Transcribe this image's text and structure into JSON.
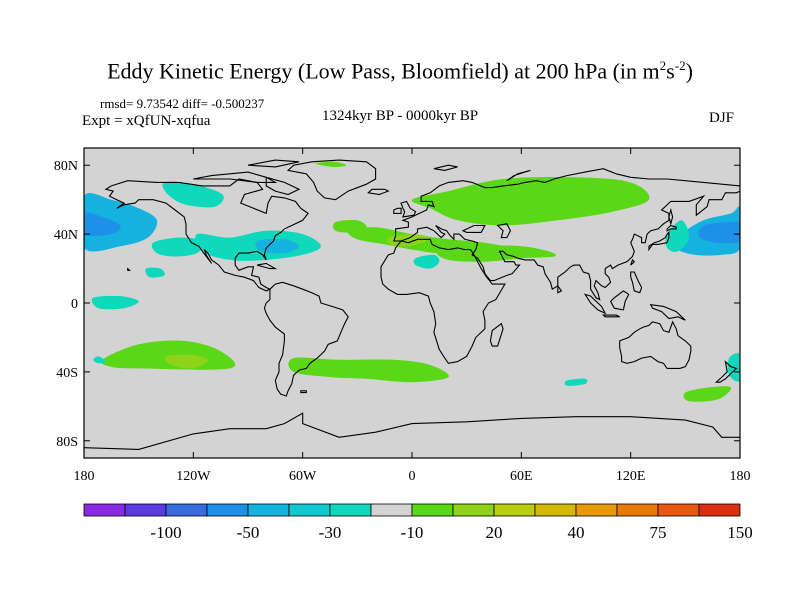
{
  "title": {
    "main": "Eddy Kinetic Energy (Low Pass, Bloomfield) at 200 hPa (in m",
    "sup1": "2",
    "mid": "s",
    "sup2": "-2",
    "end": ")"
  },
  "stats": {
    "rmsd": "rmsd= 9.73542 diff= -0.500237",
    "expt": "Expt = xQfUN-xqfua",
    "period": "1324kyr BP - 0000kyr BP",
    "season": "DJF"
  },
  "colors": {
    "ocean_land_background": "#d3d3d3",
    "coastline": "#000000"
  },
  "chart_data": {
    "type": "filled-contour-map",
    "title": "Eddy Kinetic Energy (Low Pass, Bloomfield) at 200 hPa (in m^2 s^-2)",
    "projection": "cylindrical equidistant",
    "lon_range": [
      -180,
      180
    ],
    "lat_range": [
      -90,
      90
    ],
    "x_ticks": [
      {
        "lon": -180,
        "label": "180"
      },
      {
        "lon": -120,
        "label": "120W"
      },
      {
        "lon": -60,
        "label": "60W"
      },
      {
        "lon": 0,
        "label": "0"
      },
      {
        "lon": 60,
        "label": "60E"
      },
      {
        "lon": 120,
        "label": "120E"
      },
      {
        "lon": 180,
        "label": "180"
      }
    ],
    "y_ticks": [
      {
        "lat": 80,
        "label": "80N"
      },
      {
        "lat": 40,
        "label": "40N"
      },
      {
        "lat": 0,
        "label": "0"
      },
      {
        "lat": -40,
        "label": "40S"
      },
      {
        "lat": -80,
        "label": "80S"
      }
    ],
    "colorbar": {
      "colors": [
        "#8a2be2",
        "#5a3ce0",
        "#3a6ae0",
        "#1e90e8",
        "#15b2e0",
        "#12c8d0",
        "#10d8bc",
        "#d3d3d3",
        "#5ad818",
        "#8ed21a",
        "#b8cc10",
        "#d4b808",
        "#e69a06",
        "#ea7a08",
        "#e85810",
        "#dc3010"
      ],
      "labels": [
        {
          "after_box": 2,
          "text": "-100"
        },
        {
          "after_box": 4,
          "text": "-50"
        },
        {
          "after_box": 6,
          "text": "-30"
        },
        {
          "after_box": 8,
          "text": "-10"
        },
        {
          "after_box": 10,
          "text": "20"
        },
        {
          "after_box": 12,
          "text": "40"
        },
        {
          "after_box": 14,
          "text": "75"
        },
        {
          "after_box": 16,
          "text": "150"
        }
      ]
    },
    "regions": [
      {
        "name": "n-pacific-negative",
        "level": -30,
        "color": "#15b2e0",
        "pts": [
          [
            -180,
            62
          ],
          [
            -165,
            60
          ],
          [
            -150,
            55
          ],
          [
            -140,
            48
          ],
          [
            -145,
            38
          ],
          [
            -160,
            33
          ],
          [
            -180,
            32
          ]
        ]
      },
      {
        "name": "n-pacific-negative-core",
        "level": -50,
        "color": "#1e90e8",
        "pts": [
          [
            -180,
            52
          ],
          [
            -170,
            50
          ],
          [
            -160,
            45
          ],
          [
            -165,
            40
          ],
          [
            -180,
            40
          ]
        ]
      },
      {
        "name": "n-pacific-negative-e",
        "level": -30,
        "color": "#15b2e0",
        "pts": [
          [
            148,
            40
          ],
          [
            160,
            48
          ],
          [
            175,
            52
          ],
          [
            180,
            55
          ],
          [
            180,
            32
          ],
          [
            170,
            28
          ],
          [
            155,
            28
          ],
          [
            145,
            32
          ]
        ]
      },
      {
        "name": "n-pacific-core-e",
        "level": -50,
        "color": "#1e90e8",
        "pts": [
          [
            160,
            45
          ],
          [
            175,
            47
          ],
          [
            180,
            46
          ],
          [
            180,
            36
          ],
          [
            168,
            35
          ],
          [
            158,
            38
          ]
        ]
      },
      {
        "name": "w-pacific-edge",
        "level": -10,
        "color": "#10d8bc",
        "pts": [
          [
            140,
            40
          ],
          [
            148,
            48
          ],
          [
            152,
            38
          ],
          [
            146,
            30
          ],
          [
            140,
            32
          ]
        ]
      },
      {
        "name": "east-pacific-neg",
        "level": -10,
        "color": "#10d8bc",
        "pts": [
          [
            -142,
            35
          ],
          [
            -128,
            38
          ],
          [
            -115,
            36
          ],
          [
            -118,
            29
          ],
          [
            -130,
            27
          ],
          [
            -140,
            29
          ]
        ]
      },
      {
        "name": "ne-america-neg",
        "level": -10,
        "color": "#10d8bc",
        "pts": [
          [
            -136,
            70
          ],
          [
            -120,
            69
          ],
          [
            -104,
            63
          ],
          [
            -108,
            56
          ],
          [
            -124,
            57
          ],
          [
            -134,
            63
          ]
        ]
      },
      {
        "name": "n-atlantic-neg",
        "level": -10,
        "color": "#10d8bc",
        "pts": [
          [
            -118,
            40
          ],
          [
            -100,
            38
          ],
          [
            -80,
            42
          ],
          [
            -60,
            40
          ],
          [
            -50,
            33
          ],
          [
            -60,
            28
          ],
          [
            -80,
            25
          ],
          [
            -100,
            25
          ],
          [
            -115,
            30
          ]
        ]
      },
      {
        "name": "n-atlantic-neg-core",
        "level": -30,
        "color": "#15b2e0",
        "pts": [
          [
            -85,
            36
          ],
          [
            -70,
            37
          ],
          [
            -62,
            33
          ],
          [
            -70,
            29
          ],
          [
            -83,
            30
          ]
        ]
      },
      {
        "name": "greenland-pos",
        "level": 20,
        "color": "#5ad818",
        "pts": [
          [
            -53,
            81
          ],
          [
            -43,
            82
          ],
          [
            -36,
            80
          ],
          [
            -43,
            79
          ]
        ]
      },
      {
        "name": "europe-pos",
        "level": 20,
        "color": "#5ad818",
        "pts": [
          [
            0,
            60
          ],
          [
            20,
            65
          ],
          [
            50,
            72
          ],
          [
            90,
            73
          ],
          [
            120,
            70
          ],
          [
            130,
            60
          ],
          [
            110,
            53
          ],
          [
            80,
            48
          ],
          [
            50,
            45
          ],
          [
            25,
            48
          ],
          [
            10,
            55
          ]
        ]
      },
      {
        "name": "mediterranean-pos",
        "level": 20,
        "color": "#5ad818",
        "pts": [
          [
            -35,
            42
          ],
          [
            -20,
            44
          ],
          [
            0,
            40
          ],
          [
            20,
            37
          ],
          [
            40,
            35
          ],
          [
            60,
            31
          ],
          [
            65,
            28
          ],
          [
            50,
            25
          ],
          [
            20,
            28
          ],
          [
            0,
            31
          ],
          [
            -15,
            34
          ],
          [
            -30,
            37
          ]
        ]
      },
      {
        "name": "mid-atlantic-pos",
        "level": 20,
        "color": "#5ad818",
        "pts": [
          [
            -42,
            47
          ],
          [
            -30,
            48
          ],
          [
            -25,
            44
          ],
          [
            -32,
            41
          ],
          [
            -42,
            42
          ]
        ]
      },
      {
        "name": "mediterranean-core",
        "level": 40,
        "color": "#8ed21a",
        "pts": [
          [
            -13,
            38
          ],
          [
            0,
            40
          ],
          [
            10,
            38
          ],
          [
            3,
            34
          ],
          [
            -10,
            33
          ]
        ]
      },
      {
        "name": "n-africa-pos",
        "level": 20,
        "color": "#5ad818",
        "pts": [
          [
            15,
            30
          ],
          [
            40,
            33
          ],
          [
            60,
            33
          ],
          [
            75,
            30
          ],
          [
            78,
            27
          ],
          [
            60,
            26
          ],
          [
            40,
            24
          ],
          [
            20,
            25
          ]
        ]
      },
      {
        "name": "n-africa-neg",
        "level": -10,
        "color": "#10d8bc",
        "pts": [
          [
            2,
            26
          ],
          [
            12,
            28
          ],
          [
            15,
            24
          ],
          [
            10,
            20
          ],
          [
            2,
            22
          ]
        ]
      },
      {
        "name": "india-neg",
        "level": -10,
        "color": "#10d8bc",
        "pts": [
          [
            -146,
            20
          ],
          [
            -138,
            20
          ],
          [
            -136,
            16
          ],
          [
            -144,
            15
          ]
        ]
      },
      {
        "name": "c-pacific-neg",
        "level": -10,
        "color": "#10d8bc",
        "pts": [
          [
            -175,
            3
          ],
          [
            -160,
            4
          ],
          [
            -150,
            1
          ],
          [
            -158,
            -3
          ],
          [
            -172,
            -3
          ]
        ]
      },
      {
        "name": "s-pacific-pos",
        "level": 20,
        "color": "#5ad818",
        "pts": [
          [
            -170,
            -33
          ],
          [
            -150,
            -24
          ],
          [
            -125,
            -22
          ],
          [
            -105,
            -28
          ],
          [
            -100,
            -38
          ],
          0,
          [
            -150,
            -38
          ],
          [
            -165,
            -37
          ]
        ]
      },
      {
        "name": "s-pacific-core",
        "level": 40,
        "color": "#8ed21a",
        "pts": [
          [
            -135,
            -31
          ],
          [
            -122,
            -30
          ],
          [
            -112,
            -33
          ],
          [
            -120,
            -38
          ],
          [
            -132,
            -36
          ]
        ]
      },
      {
        "name": "s-pacific-neg",
        "level": -10,
        "color": "#10d8bc",
        "pts": [
          [
            -175,
            -33
          ],
          [
            -172,
            -35
          ],
          [
            -168,
            -34
          ],
          [
            -172,
            -31
          ]
        ]
      },
      {
        "name": "s-atlantic-pos",
        "level": 20,
        "color": "#5ad818",
        "pts": [
          [
            -65,
            -32
          ],
          [
            -40,
            -33
          ],
          [
            -10,
            -33
          ],
          [
            10,
            -36
          ],
          [
            20,
            -43
          ],
          [
            0,
            -46
          ],
          [
            -25,
            -44
          ],
          [
            -45,
            -43
          ],
          [
            -65,
            -40
          ]
        ]
      },
      {
        "name": "s-indian-neg",
        "level": -10,
        "color": "#10d8bc",
        "pts": [
          [
            85,
            -45
          ],
          [
            95,
            -44
          ],
          [
            95,
            -47
          ],
          [
            85,
            -48
          ]
        ]
      },
      {
        "name": "s-pacific-e-neg",
        "level": -10,
        "color": "#10d8bc",
        "pts": [
          [
            174,
            -32
          ],
          [
            180,
            -30
          ],
          [
            180,
            -45
          ],
          [
            174,
            -42
          ]
        ]
      },
      {
        "name": "tasman-pos",
        "level": 20,
        "color": "#5ad818",
        "pts": [
          [
            150,
            -52
          ],
          [
            163,
            -49
          ],
          [
            175,
            -49
          ],
          [
            168,
            -56
          ],
          [
            152,
            -57
          ]
        ]
      }
    ]
  }
}
